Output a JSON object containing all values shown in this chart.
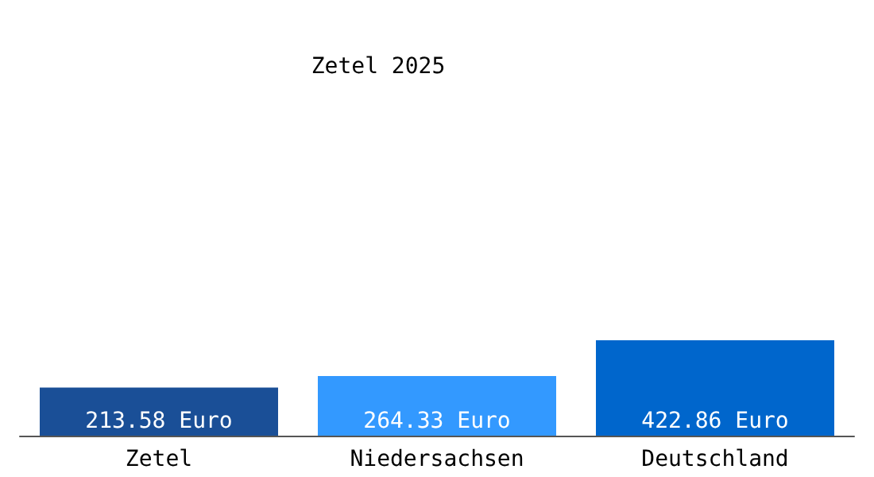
{
  "chart_data": {
    "type": "bar",
    "title": "Zetel 2025",
    "categories": [
      "Zetel",
      "Niedersachsen",
      "Deutschland"
    ],
    "values": [
      213.58,
      264.33,
      422.86
    ],
    "colors": [
      "#1a4f97",
      "#3399ff",
      "#0066cc"
    ],
    "value_labels": [
      "213.58 Euro",
      "264.33 Euro",
      "422.86 Euro"
    ],
    "grid": false
  }
}
